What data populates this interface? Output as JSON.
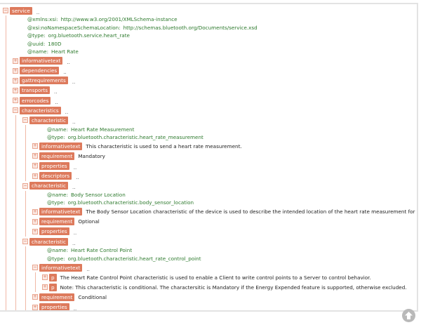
{
  "tree": {
    "tag": "service",
    "expanded": true,
    "dots": "..",
    "attrs": [
      {
        "name": "@xmlns:xsi:",
        "value": "http://www.w3.org/2001/XMLSchema-instance"
      },
      {
        "name": "@xsi:noNamespaceSchemaLocation:",
        "value": "http://schemas.bluetooth.org/Documents/service.xsd"
      },
      {
        "name": "@type:",
        "value": "org.bluetooth.service.heart_rate"
      },
      {
        "name": "@uuid:",
        "value": "180D"
      },
      {
        "name": "@name:",
        "value": "Heart Rate"
      }
    ],
    "children": [
      {
        "tag": "informativetext",
        "expanded": false,
        "dots": ".."
      },
      {
        "tag": "dependencies",
        "expanded": false,
        "dots": ".."
      },
      {
        "tag": "gattrequirements",
        "expanded": false,
        "dots": ".."
      },
      {
        "tag": "transports",
        "expanded": false,
        "dots": ".."
      },
      {
        "tag": "errorcodes",
        "expanded": false,
        "dots": ".."
      },
      {
        "tag": "characteristics",
        "expanded": true,
        "dots": "..",
        "children": [
          {
            "tag": "characteristic",
            "expanded": true,
            "dots": "..",
            "attrs": [
              {
                "name": "@name:",
                "value": "Heart Rate Measurement"
              },
              {
                "name": "@type:",
                "value": "org.bluetooth.characteristic.heart_rate_measurement"
              }
            ],
            "children": [
              {
                "tag": "informativetext",
                "expanded": false,
                "text": "This characteristic is used to send a heart rate measurement."
              },
              {
                "tag": "requirement",
                "expanded": false,
                "text": "Mandatory"
              },
              {
                "tag": "properties",
                "expanded": false,
                "dots": ".."
              },
              {
                "tag": "descriptors",
                "expanded": false,
                "dots": ".."
              }
            ]
          },
          {
            "tag": "characteristic",
            "expanded": true,
            "dots": "..",
            "attrs": [
              {
                "name": "@name:",
                "value": "Body Sensor Location"
              },
              {
                "name": "@type:",
                "value": "org.bluetooth.characteristic.body_sensor_location"
              }
            ],
            "children": [
              {
                "tag": "informativetext",
                "expanded": false,
                "text": "The Body Sensor Location characteristic of the device is used to describe the intended location of the heart rate measurement for the device."
              },
              {
                "tag": "requirement",
                "expanded": false,
                "text": "Optional"
              },
              {
                "tag": "properties",
                "expanded": false,
                "dots": ".."
              }
            ]
          },
          {
            "tag": "characteristic",
            "expanded": true,
            "dots": "..",
            "attrs": [
              {
                "name": "@name:",
                "value": "Heart Rate Control Point"
              },
              {
                "name": "@type:",
                "value": "org.bluetooth.characteristic.heart_rate_control_point"
              }
            ],
            "children": [
              {
                "tag": "informativetext",
                "expanded": true,
                "dots": "..",
                "children": [
                  {
                    "tag": "p",
                    "expanded": false,
                    "text": "The Heart Rate Control Point characteristic is used to enable a Client to write control points to a Server to control behavior."
                  },
                  {
                    "tag": "p",
                    "expanded": false,
                    "text": "Note: This characteristic is conditional. The charactersitic is Mandatory if the Energy Expended feature is supported, otherwise excluded."
                  }
                ]
              },
              {
                "tag": "requirement",
                "expanded": false,
                "text": "Conditional"
              },
              {
                "tag": "properties",
                "expanded": false,
                "dots": ".."
              }
            ]
          }
        ]
      }
    ]
  },
  "scroll_top": {
    "icon": "arrow-up-icon"
  }
}
